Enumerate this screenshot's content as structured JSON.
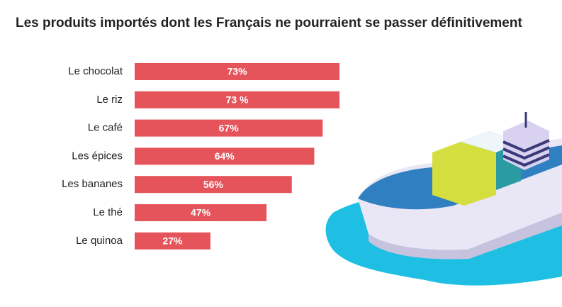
{
  "chart_data": {
    "type": "bar",
    "orientation": "horizontal",
    "title": "Les produits importés dont les Français ne pourraient se passer définitivement",
    "categories": [
      "Le chocolat",
      "Le riz",
      "Le café",
      "Les épices",
      "Les bananes",
      "Le thé",
      "Le quinoa"
    ],
    "values": [
      73,
      73,
      67,
      64,
      56,
      47,
      27
    ],
    "value_labels": [
      "73%",
      "73 %",
      "67%",
      "64%",
      "56%",
      "47%",
      "27%"
    ],
    "color": "#e5545b"
  }
}
